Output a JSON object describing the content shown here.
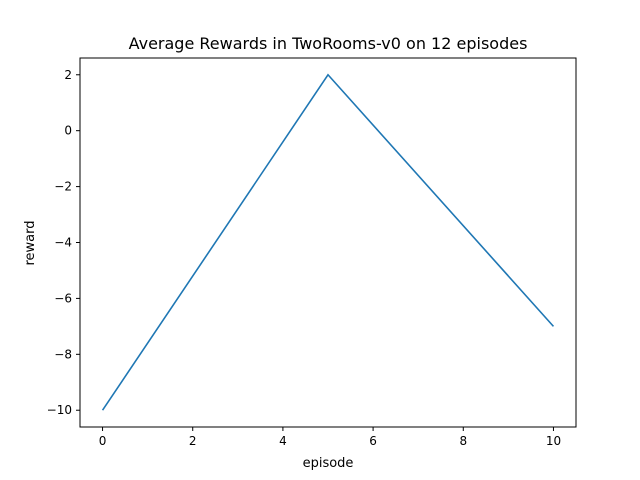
{
  "chart_data": {
    "type": "line",
    "title": "Average Rewards in TwoRooms-v0 on 12 episodes",
    "xlabel": "episode",
    "ylabel": "reward",
    "x": [
      0,
      5,
      10
    ],
    "series": [
      {
        "values": [
          -10,
          2,
          -7
        ],
        "color": "#1f77b4"
      }
    ],
    "xlim": [
      -0.5,
      10.5
    ],
    "ylim": [
      -10.6,
      2.6
    ],
    "xticks": [
      0,
      2,
      4,
      6,
      8,
      10
    ],
    "xtick_labels": [
      "0",
      "2",
      "4",
      "6",
      "8",
      "10"
    ],
    "yticks": [
      -10,
      -8,
      -6,
      -4,
      -2,
      0,
      2
    ],
    "ytick_labels": [
      "−10",
      "−8",
      "−6",
      "−4",
      "−2",
      "0",
      "2"
    ],
    "grid": false,
    "legend": "none"
  }
}
